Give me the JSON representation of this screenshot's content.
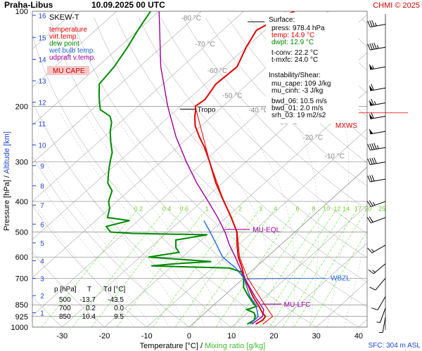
{
  "header": {
    "location": "Praha-Libus",
    "datetime": "10.09.2025 00 UTC",
    "copyright": "CHMI © 2025"
  },
  "legend": {
    "title": "SKEW-T",
    "items": [
      {
        "label": "temperature",
        "color": "#dd0000"
      },
      {
        "label": "virt.temp.",
        "color": "#dd0000"
      },
      {
        "label": "dew point",
        "color": "#008800"
      },
      {
        "label": "wet bulb temp.",
        "color": "#2266dd"
      },
      {
        "label": "udpraft v.temp.",
        "color": "#990099"
      }
    ],
    "cape_label": "MU CAPE",
    "cape_bg": "#f7c8c8"
  },
  "surface_box": {
    "title": "Surface:",
    "press": "press: 978.4 hPa",
    "temp": "temp: 14.9 °C",
    "dwpt": "dwpt: 12.9 °C",
    "tconv": "t-conv: 22.2 °C",
    "tmxfc": "t-mxfc: 24.0 °C",
    "instab_title": "Instability/Shear:",
    "mu_cape": "mu_cape: 109 J/kg",
    "mu_cinh": "mu_cinh: -3 J/kg",
    "bwd_06": "bwd_06: 10.5 m/s",
    "bwd_01": "bwd_01: 2.0 m/s",
    "srh_03": "srh_03: 19 m2/s2"
  },
  "level_table": {
    "headers": [
      "p [hPa]",
      "T",
      "Td [°C]"
    ],
    "rows": [
      [
        "500",
        "-13.7",
        "-43.5"
      ],
      [
        "700",
        "0.2",
        "0.0"
      ],
      [
        "850",
        "10.4",
        "9.5"
      ]
    ]
  },
  "annotations": {
    "tropo": "Tropo",
    "mu_eql": "MU-EQL",
    "mu_lfc": "MU-LFC",
    "wbzl": "WBZL",
    "mxws": "MXWS",
    "sfc": "SFC: 304 m ASL"
  },
  "colors": {
    "temperature": "#dd0000",
    "dewpoint": "#008800",
    "wetbulb": "#2266dd",
    "parcel": "#990099",
    "mixing": "#66dd44",
    "isobar": "#888888",
    "isotherm": "#aaaaaa",
    "dry_adiabat": "#bbbbbb",
    "moist_adiabat": "#cccccc",
    "height_axis": "#2244cc"
  },
  "chart_data": {
    "type": "line",
    "title": "SKEW-T",
    "xlabel": "Temperature [°C]",
    "xlabel_extra": "Mixing ratio [g/kg]",
    "ylabel": "Pressure [hPa]",
    "ylabel_extra": "Altitude [km]",
    "xlim": [
      -37,
      42
    ],
    "ylim": [
      1000,
      100
    ],
    "yscale": "log",
    "x_ticks": [
      -30,
      -20,
      -10,
      0,
      10,
      20,
      30,
      40
    ],
    "pressure_ticks": [
      100,
      200,
      300,
      400,
      500,
      600,
      700,
      850,
      925,
      1000
    ],
    "isobar_levels": [
      100,
      200,
      300,
      400,
      500,
      600,
      700,
      850,
      925,
      1000
    ],
    "altitude_ticks": [
      {
        "km": 1,
        "p": 900
      },
      {
        "km": 2,
        "p": 795
      },
      {
        "km": 3,
        "p": 701
      },
      {
        "km": 4,
        "p": 616
      },
      {
        "km": 5,
        "p": 541
      },
      {
        "km": 6,
        "p": 472
      },
      {
        "km": 7,
        "p": 411
      },
      {
        "km": 8,
        "p": 357
      },
      {
        "km": 9,
        "p": 308
      },
      {
        "km": 10,
        "p": 265
      },
      {
        "km": 11,
        "p": 227
      },
      {
        "km": 12,
        "p": 194
      },
      {
        "km": 13,
        "p": 166
      },
      {
        "km": 14,
        "p": 142
      },
      {
        "km": 15,
        "p": 121
      },
      {
        "km": 16,
        "p": 103
      }
    ],
    "isotherm_labels": [
      {
        "t": -80,
        "p": 107
      },
      {
        "t": -70,
        "p": 129
      },
      {
        "t": -60,
        "p": 157
      },
      {
        "t": -50,
        "p": 188
      },
      {
        "t": -40,
        "p": 209
      },
      {
        "t": -30,
        "p": 228
      },
      {
        "t": -20,
        "p": 255
      },
      {
        "t": -10,
        "p": 292
      }
    ],
    "mixing_ratios": [
      0.2,
      0.4,
      0.6,
      1,
      2,
      3,
      4,
      6,
      8,
      10,
      12,
      14,
      17,
      20,
      25
    ],
    "mixing_label_p": 420,
    "series": [
      {
        "name": "temperature",
        "color": "#dd0000",
        "points": [
          [
            978.4,
            14.9
          ],
          [
            950,
            15.5
          ],
          [
            925,
            15.2
          ],
          [
            900,
            13.5
          ],
          [
            850,
            10.4
          ],
          [
            800,
            7.0
          ],
          [
            750,
            3.8
          ],
          [
            700,
            0.2
          ],
          [
            650,
            -3.0
          ],
          [
            600,
            -6.8
          ],
          [
            550,
            -10.2
          ],
          [
            500,
            -13.7
          ],
          [
            450,
            -18.8
          ],
          [
            400,
            -24.8
          ],
          [
            350,
            -31.5
          ],
          [
            300,
            -38.5
          ],
          [
            270,
            -43.5
          ],
          [
            250,
            -47.5
          ],
          [
            230,
            -51.5
          ],
          [
            215,
            -54.0
          ],
          [
            205,
            -55.5
          ],
          [
            200,
            -56.5
          ],
          [
            190,
            -56.0
          ],
          [
            170,
            -57.5
          ],
          [
            150,
            -57.0
          ],
          [
            130,
            -60.0
          ],
          [
            115,
            -62.0
          ],
          [
            105,
            -60.0
          ],
          [
            100,
            -58.0
          ]
        ]
      },
      {
        "name": "virt.temp.",
        "color": "#dd0000",
        "points": [
          [
            978.4,
            16.6
          ],
          [
            925,
            16.9
          ],
          [
            850,
            12.0
          ],
          [
            700,
            1.0
          ],
          [
            600,
            -6.5
          ],
          [
            500,
            -13.6
          ],
          [
            400,
            -24.8
          ],
          [
            300,
            -38.5
          ],
          [
            200,
            -56.5
          ]
        ]
      },
      {
        "name": "dew point",
        "color": "#008800",
        "points": [
          [
            978.4,
            12.9
          ],
          [
            950,
            13.5
          ],
          [
            925,
            12.8
          ],
          [
            900,
            11.5
          ],
          [
            880,
            9.0
          ],
          [
            860,
            10.5
          ],
          [
            850,
            9.5
          ],
          [
            800,
            6.0
          ],
          [
            750,
            2.5
          ],
          [
            700,
            0.0
          ],
          [
            670,
            -2.0
          ],
          [
            650,
            -6.0
          ],
          [
            640,
            -25.0
          ],
          [
            630,
            -20.0
          ],
          [
            620,
            -12.0
          ],
          [
            600,
            -28.0
          ],
          [
            580,
            -22.0
          ],
          [
            560,
            -24.0
          ],
          [
            530,
            -26.0
          ],
          [
            510,
            -20.0
          ],
          [
            505,
            -38.0
          ],
          [
            500,
            -43.5
          ],
          [
            480,
            -46.0
          ],
          [
            460,
            -42.0
          ],
          [
            450,
            -48.0
          ],
          [
            420,
            -50.0
          ],
          [
            400,
            -52.0
          ],
          [
            370,
            -54.0
          ],
          [
            350,
            -57.0
          ],
          [
            320,
            -60.0
          ],
          [
            300,
            -62.0
          ],
          [
            280,
            -64.0
          ],
          [
            260,
            -67.0
          ],
          [
            240,
            -70.0
          ],
          [
            225,
            -72.0
          ],
          [
            215,
            -74.0
          ],
          [
            205,
            -78.0
          ],
          [
            195,
            -80.0
          ],
          [
            185,
            -82.0
          ],
          [
            170,
            -85.0
          ],
          [
            150,
            -86.0
          ],
          [
            130,
            -88.0
          ],
          [
            115,
            -90.0
          ],
          [
            100,
            -92.0
          ]
        ]
      },
      {
        "name": "wet bulb temp.",
        "color": "#2266dd",
        "points": [
          [
            978.4,
            13.6
          ],
          [
            925,
            13.5
          ],
          [
            850,
            9.9
          ],
          [
            800,
            6.3
          ],
          [
            700,
            0.1
          ],
          [
            650,
            -4.5
          ],
          [
            600,
            -10.5
          ],
          [
            550,
            -15.0
          ],
          [
            500,
            -20.0
          ],
          [
            460,
            -24.5
          ]
        ]
      },
      {
        "name": "udpraft v.temp.",
        "color": "#990099",
        "points": [
          [
            978.4,
            14.0
          ],
          [
            925,
            14.5
          ],
          [
            880,
            13.0
          ],
          [
            850,
            11.0
          ],
          [
            800,
            7.5
          ],
          [
            750,
            4.0
          ],
          [
            700,
            0.3
          ],
          [
            650,
            -3.5
          ],
          [
            600,
            -7.5
          ],
          [
            550,
            -12.0
          ],
          [
            500,
            -16.5
          ],
          [
            450,
            -22.0
          ],
          [
            400,
            -28.5
          ],
          [
            350,
            -36.0
          ],
          [
            300,
            -44.0
          ],
          [
            250,
            -53.0
          ],
          [
            200,
            -63.0
          ],
          [
            150,
            -75.0
          ],
          [
            100,
            -90.0
          ]
        ]
      }
    ],
    "wind_barbs": [
      {
        "p": 110,
        "dir": 260,
        "kt": 35
      },
      {
        "p": 130,
        "dir": 260,
        "kt": 45
      },
      {
        "p": 150,
        "dir": 260,
        "kt": 55
      },
      {
        "p": 175,
        "dir": 260,
        "kt": 60
      },
      {
        "p": 195,
        "dir": 260,
        "kt": 65
      },
      {
        "p": 215,
        "dir": 260,
        "kt": 60
      },
      {
        "p": 240,
        "dir": 260,
        "kt": 50
      },
      {
        "p": 270,
        "dir": 260,
        "kt": 45
      },
      {
        "p": 300,
        "dir": 260,
        "kt": 40
      },
      {
        "p": 340,
        "dir": 260,
        "kt": 30
      },
      {
        "p": 400,
        "dir": 250,
        "kt": 25
      },
      {
        "p": 450,
        "dir": 250,
        "kt": 20
      },
      {
        "p": 550,
        "dir": 240,
        "kt": 15
      },
      {
        "p": 630,
        "dir": 230,
        "kt": 15
      },
      {
        "p": 700,
        "dir": 220,
        "kt": 10
      },
      {
        "p": 800,
        "dir": 210,
        "kt": 10
      },
      {
        "p": 870,
        "dir": 200,
        "kt": 5
      },
      {
        "p": 930,
        "dir": 190,
        "kt": 5
      }
    ],
    "mxws_p": 213,
    "tropo_p": 200,
    "mu_eql_p": 490,
    "mu_lfc_p": 845,
    "wbzl_p": 700
  }
}
